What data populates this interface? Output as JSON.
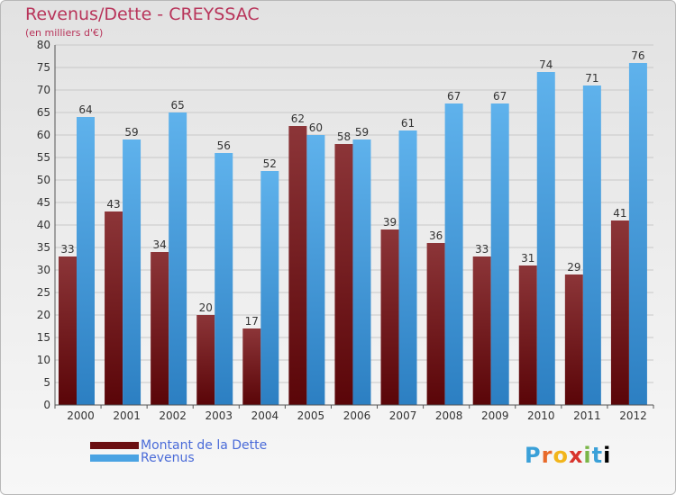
{
  "title": "Revenus/Dette - CREYSSAC",
  "subtitle": "(en milliers d'€)",
  "legend": [
    {
      "label": "Montant de la Dette",
      "color": "#6b0f12"
    },
    {
      "label": "Revenus",
      "color": "#4aa3e3"
    }
  ],
  "logo": "Proxiti",
  "colors": {
    "dette": "#6b0f12",
    "revenus": "#4aa3e3",
    "title": "#b8345a",
    "grid": "#c8c8c8"
  },
  "chart_data": {
    "type": "bar",
    "categories": [
      "2000",
      "2001",
      "2002",
      "2003",
      "2004",
      "2005",
      "2006",
      "2007",
      "2008",
      "2009",
      "2010",
      "2011",
      "2012"
    ],
    "series": [
      {
        "name": "Montant de la Dette",
        "values": [
          33,
          43,
          34,
          20,
          17,
          62,
          58,
          39,
          36,
          33,
          31,
          29,
          41
        ]
      },
      {
        "name": "Revenus",
        "values": [
          64,
          59,
          65,
          56,
          52,
          60,
          59,
          61,
          67,
          67,
          74,
          71,
          76
        ]
      }
    ],
    "ylim": [
      0,
      80
    ],
    "yticks": [
      0,
      5,
      10,
      15,
      20,
      25,
      30,
      35,
      40,
      45,
      50,
      55,
      60,
      65,
      70,
      75,
      80
    ],
    "grid": true,
    "legend_position": "bottom-left"
  }
}
